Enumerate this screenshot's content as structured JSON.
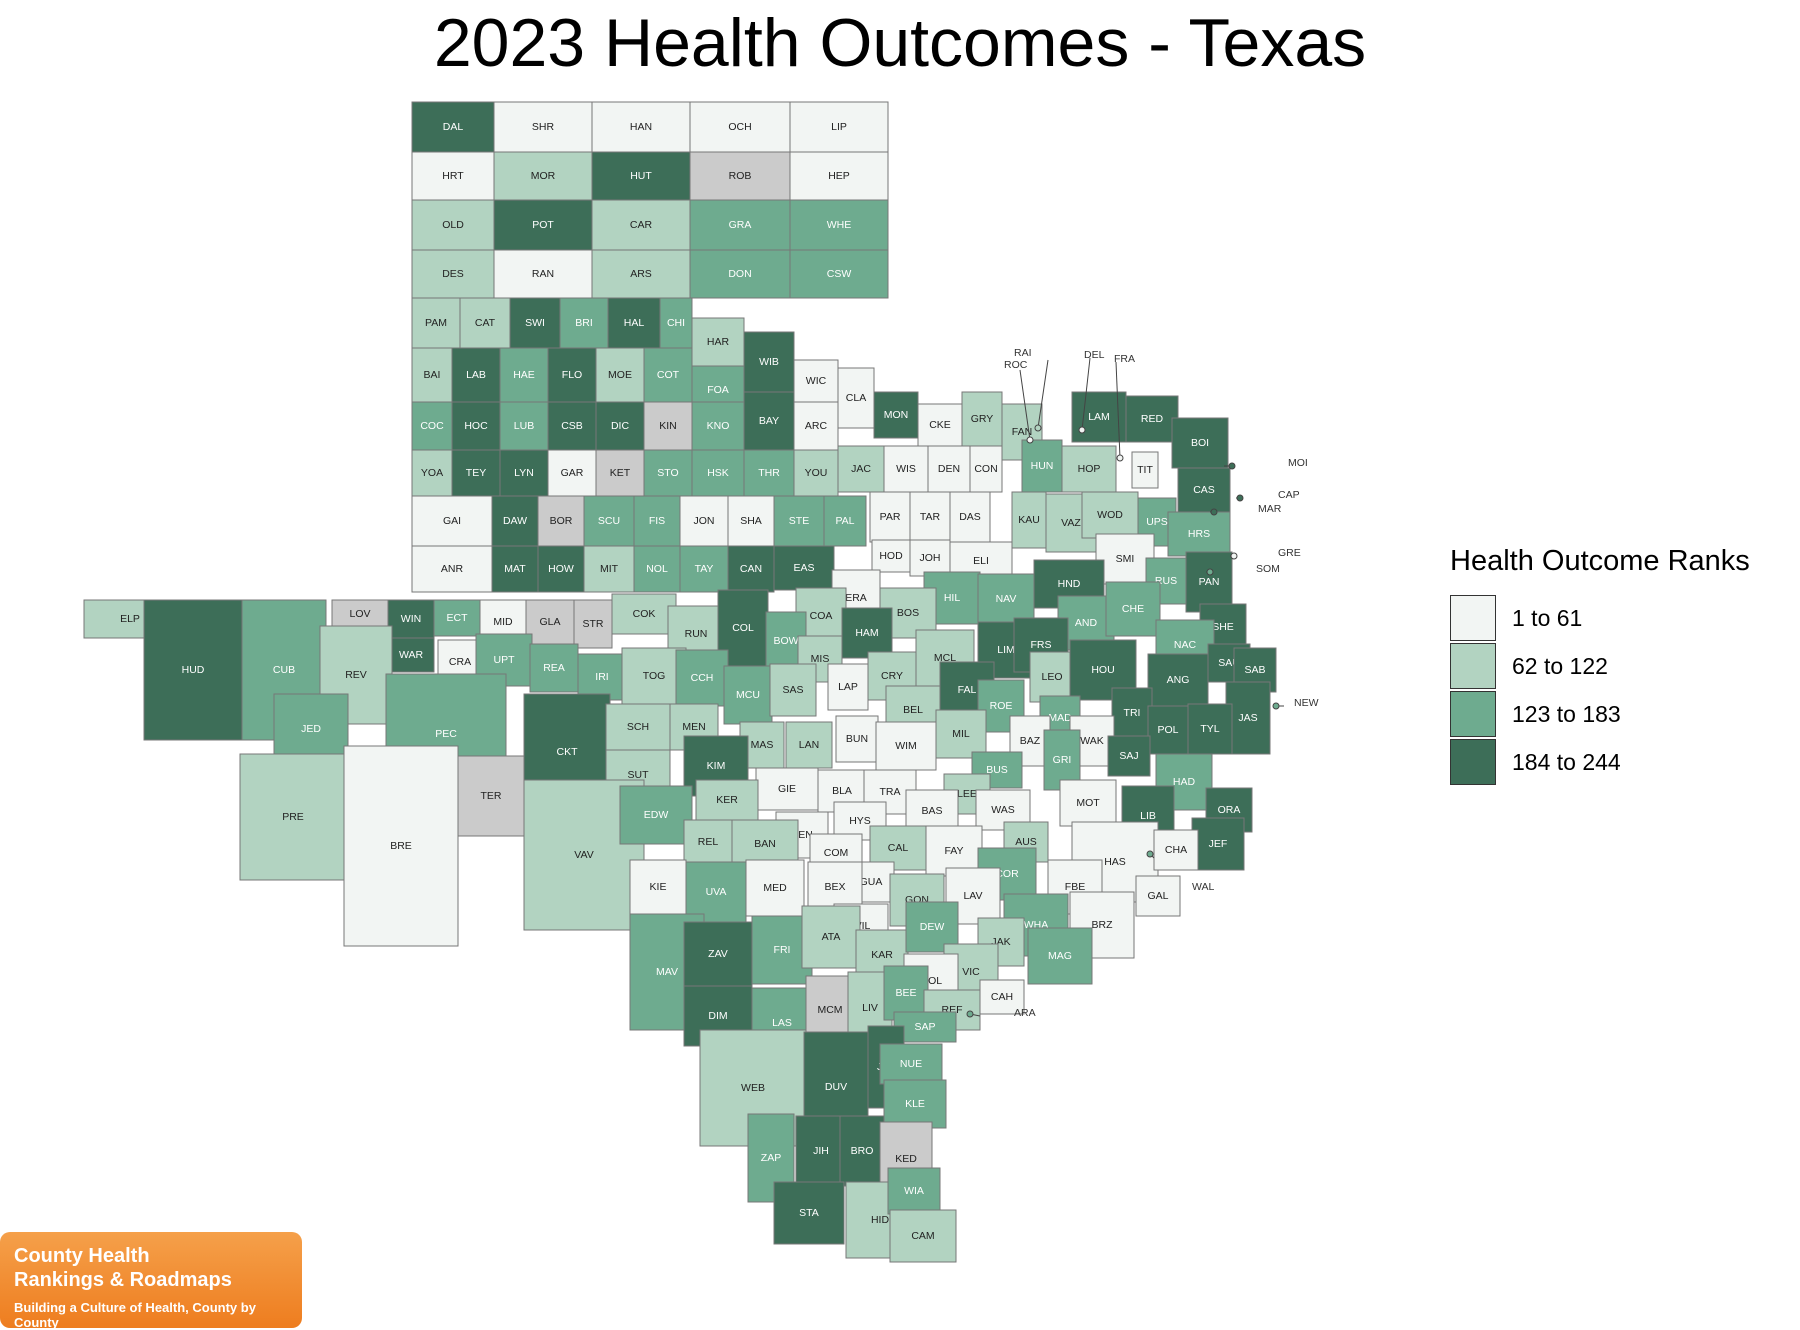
{
  "title": "2023 Health Outcomes - Texas",
  "legend": {
    "title": "Health Outcome Ranks",
    "items": [
      {
        "label": "1 to 61",
        "color": "#f2f5f3"
      },
      {
        "label": "62 to 122",
        "color": "#b2d3c1"
      },
      {
        "label": "123 to 183",
        "color": "#6eab8f"
      },
      {
        "label": "184 to 244",
        "color": "#3d6e58"
      }
    ],
    "no_data_color": "#cbcbcb"
  },
  "logo": {
    "line1": "County Health",
    "line2": "Rankings & Roadmaps",
    "tagline": "Building a Culture of Health, County by County"
  },
  "counties": [
    {
      "a": "DAL",
      "c": 4
    },
    {
      "a": "SHR",
      "c": 1
    },
    {
      "a": "HAN",
      "c": 1
    },
    {
      "a": "OCH",
      "c": 1
    },
    {
      "a": "LIP",
      "c": 1
    },
    {
      "a": "HRT",
      "c": 1
    },
    {
      "a": "MOR",
      "c": 2
    },
    {
      "a": "HUT",
      "c": 4
    },
    {
      "a": "ROB",
      "c": 0
    },
    {
      "a": "HEP",
      "c": 1
    },
    {
      "a": "OLD",
      "c": 2
    },
    {
      "a": "POT",
      "c": 4
    },
    {
      "a": "CAR",
      "c": 2
    },
    {
      "a": "GRA",
      "c": 3
    },
    {
      "a": "WHE",
      "c": 3
    },
    {
      "a": "DES",
      "c": 2
    },
    {
      "a": "RAN",
      "c": 1
    },
    {
      "a": "ARS",
      "c": 2
    },
    {
      "a": "DON",
      "c": 3
    },
    {
      "a": "CSW",
      "c": 3
    },
    {
      "a": "PAM",
      "c": 2
    },
    {
      "a": "CAT",
      "c": 2
    },
    {
      "a": "SWI",
      "c": 4
    },
    {
      "a": "BRI",
      "c": 3
    },
    {
      "a": "HAL",
      "c": 4
    },
    {
      "a": "CHI",
      "c": 3
    },
    {
      "a": "BAI",
      "c": 2
    },
    {
      "a": "LAB",
      "c": 4
    },
    {
      "a": "HAE",
      "c": 3
    },
    {
      "a": "FLO",
      "c": 4
    },
    {
      "a": "MOE",
      "c": 2
    },
    {
      "a": "COT",
      "c": 3
    },
    {
      "a": "COC",
      "c": 3
    },
    {
      "a": "HOC",
      "c": 4
    },
    {
      "a": "LUB",
      "c": 3
    },
    {
      "a": "CSB",
      "c": 4
    },
    {
      "a": "DIC",
      "c": 4
    },
    {
      "a": "KIN",
      "c": 0
    },
    {
      "a": "YOA",
      "c": 2
    },
    {
      "a": "TEY",
      "c": 4
    },
    {
      "a": "LYN",
      "c": 4
    },
    {
      "a": "GAR",
      "c": 1
    },
    {
      "a": "KET",
      "c": 0
    },
    {
      "a": "GAI",
      "c": 1
    },
    {
      "a": "DAW",
      "c": 4
    },
    {
      "a": "BOR",
      "c": 0
    },
    {
      "a": "SCU",
      "c": 3
    },
    {
      "a": "FIS",
      "c": 3
    },
    {
      "a": "JON",
      "c": 1
    },
    {
      "a": "SHA",
      "c": 1
    },
    {
      "a": "ANR",
      "c": 1
    },
    {
      "a": "MAT",
      "c": 4
    },
    {
      "a": "HOW",
      "c": 4
    },
    {
      "a": "MIT",
      "c": 2
    },
    {
      "a": "NOL",
      "c": 3
    },
    {
      "a": "TAY",
      "c": 3
    },
    {
      "a": "CAN",
      "c": 4
    },
    {
      "a": "HAR",
      "c": 2
    },
    {
      "a": "FOA",
      "c": 3
    },
    {
      "a": "WIB",
      "c": 4
    },
    {
      "a": "WIC",
      "c": 1
    },
    {
      "a": "KNO",
      "c": 3
    },
    {
      "a": "BAY",
      "c": 4
    },
    {
      "a": "ARC",
      "c": 1
    },
    {
      "a": "STO",
      "c": 3
    },
    {
      "a": "HSK",
      "c": 3
    },
    {
      "a": "THR",
      "c": 3
    },
    {
      "a": "YOU",
      "c": 2
    },
    {
      "a": "STE",
      "c": 3
    },
    {
      "a": "EAS",
      "c": 4
    },
    {
      "a": "PAL",
      "c": 3
    },
    {
      "a": "CLA",
      "c": 1
    },
    {
      "a": "MON",
      "c": 4
    },
    {
      "a": "CKE",
      "c": 1
    },
    {
      "a": "GRY",
      "c": 2
    },
    {
      "a": "FAN",
      "c": 2
    },
    {
      "a": "LAM",
      "c": 4
    },
    {
      "a": "RED",
      "c": 4
    },
    {
      "a": "BOI",
      "c": 4
    },
    {
      "a": "CAS",
      "c": 4
    },
    {
      "a": "JAC",
      "c": 2
    },
    {
      "a": "WIS",
      "c": 1
    },
    {
      "a": "DEN",
      "c": 1
    },
    {
      "a": "CON",
      "c": 1
    },
    {
      "a": "HUN",
      "c": 3
    },
    {
      "a": "HOP",
      "c": 2
    },
    {
      "a": "TIT",
      "c": 1
    },
    {
      "a": "PAR",
      "c": 1
    },
    {
      "a": "TAR",
      "c": 1
    },
    {
      "a": "DAS",
      "c": 1
    },
    {
      "a": "KAU",
      "c": 2
    },
    {
      "a": "VAZ",
      "c": 2
    },
    {
      "a": "WOD",
      "c": 2
    },
    {
      "a": "UPS",
      "c": 3
    },
    {
      "a": "HRS",
      "c": 3
    },
    {
      "a": "SMI",
      "c": 1
    },
    {
      "a": "HOD",
      "c": 1
    },
    {
      "a": "JOH",
      "c": 1
    },
    {
      "a": "ELI",
      "c": 1
    },
    {
      "a": "ERA",
      "c": 1
    },
    {
      "a": "HND",
      "c": 4
    },
    {
      "a": "RUS",
      "c": 3
    },
    {
      "a": "PAN",
      "c": 4
    },
    {
      "a": "ELP",
      "c": 2
    },
    {
      "a": "HUD",
      "c": 4
    },
    {
      "a": "CUB",
      "c": 3
    },
    {
      "a": "LOV",
      "c": 0
    },
    {
      "a": "WIN",
      "c": 4
    },
    {
      "a": "ECT",
      "c": 3
    },
    {
      "a": "MID",
      "c": 1
    },
    {
      "a": "GLA",
      "c": 0
    },
    {
      "a": "STR",
      "c": 0
    },
    {
      "a": "COK",
      "c": 2
    },
    {
      "a": "RUN",
      "c": 2
    },
    {
      "a": "COL",
      "c": 4
    },
    {
      "a": "COA",
      "c": 2
    },
    {
      "a": "BOW",
      "c": 3
    },
    {
      "a": "HIL",
      "c": 3
    },
    {
      "a": "NAV",
      "c": 3
    },
    {
      "a": "AND",
      "c": 3
    },
    {
      "a": "CHE",
      "c": 3
    },
    {
      "a": "SHE",
      "c": 4
    },
    {
      "a": "BOS",
      "c": 2
    },
    {
      "a": "HAM",
      "c": 4
    },
    {
      "a": "MCL",
      "c": 2
    },
    {
      "a": "LIM",
      "c": 4
    },
    {
      "a": "FRS",
      "c": 4
    },
    {
      "a": "NAC",
      "c": 3
    },
    {
      "a": "SAU",
      "c": 4
    },
    {
      "a": "SAB",
      "c": 4
    },
    {
      "a": "WAR",
      "c": 4
    },
    {
      "a": "CRA",
      "c": 1
    },
    {
      "a": "UPT",
      "c": 3
    },
    {
      "a": "REA",
      "c": 3
    },
    {
      "a": "IRI",
      "c": 3
    },
    {
      "a": "TOG",
      "c": 2
    },
    {
      "a": "CCH",
      "c": 3
    },
    {
      "a": "MIS",
      "c": 2
    },
    {
      "a": "CRY",
      "c": 2
    },
    {
      "a": "FAL",
      "c": 4
    },
    {
      "a": "LEO",
      "c": 2
    },
    {
      "a": "HOU",
      "c": 4
    },
    {
      "a": "ANG",
      "c": 4
    },
    {
      "a": "REV",
      "c": 2
    },
    {
      "a": "JED",
      "c": 3
    },
    {
      "a": "PEC",
      "c": 3
    },
    {
      "a": "MCU",
      "c": 3
    },
    {
      "a": "SAS",
      "c": 2
    },
    {
      "a": "LAP",
      "c": 1
    },
    {
      "a": "BEL",
      "c": 2
    },
    {
      "a": "ROE",
      "c": 3
    },
    {
      "a": "MAD",
      "c": 3
    },
    {
      "a": "TRI",
      "c": 4
    },
    {
      "a": "JAS",
      "c": 4
    },
    {
      "a": "CKT",
      "c": 4
    },
    {
      "a": "SCH",
      "c": 2
    },
    {
      "a": "MEN",
      "c": 2
    },
    {
      "a": "MAS",
      "c": 2
    },
    {
      "a": "LAN",
      "c": 2
    },
    {
      "a": "BUN",
      "c": 1
    },
    {
      "a": "WIM",
      "c": 1
    },
    {
      "a": "MIL",
      "c": 2
    },
    {
      "a": "BAZ",
      "c": 1
    },
    {
      "a": "WAK",
      "c": 1
    },
    {
      "a": "POL",
      "c": 4
    },
    {
      "a": "TYL",
      "c": 4
    },
    {
      "a": "SAJ",
      "c": 4
    },
    {
      "a": "GRI",
      "c": 3
    },
    {
      "a": "SUT",
      "c": 2
    },
    {
      "a": "KIM",
      "c": 4
    },
    {
      "a": "BUS",
      "c": 3
    },
    {
      "a": "TER",
      "c": 0
    },
    {
      "a": "GIE",
      "c": 1
    },
    {
      "a": "BLA",
      "c": 1
    },
    {
      "a": "TRA",
      "c": 1
    },
    {
      "a": "LEE",
      "c": 2
    },
    {
      "a": "MOT",
      "c": 1
    },
    {
      "a": "HAD",
      "c": 3
    },
    {
      "a": "LIB",
      "c": 4
    },
    {
      "a": "PRE",
      "c": 2
    },
    {
      "a": "VAV",
      "c": 2
    },
    {
      "a": "EDW",
      "c": 3
    },
    {
      "a": "KER",
      "c": 2
    },
    {
      "a": "KEN",
      "c": 1
    },
    {
      "a": "HYS",
      "c": 1
    },
    {
      "a": "BAS",
      "c": 1
    },
    {
      "a": "WAS",
      "c": 1
    },
    {
      "a": "ORA",
      "c": 4
    },
    {
      "a": "BRE",
      "c": 1
    },
    {
      "a": "REL",
      "c": 2
    },
    {
      "a": "BAN",
      "c": 2
    },
    {
      "a": "COM",
      "c": 1
    },
    {
      "a": "CAL",
      "c": 2
    },
    {
      "a": "FAY",
      "c": 1
    },
    {
      "a": "AUS",
      "c": 2
    },
    {
      "a": "HAS",
      "c": 1
    },
    {
      "a": "JEF",
      "c": 4
    },
    {
      "a": "CHA",
      "c": 1
    },
    {
      "a": "GUA",
      "c": 1
    },
    {
      "a": "COR",
      "c": 3
    },
    {
      "a": "KIE",
      "c": 1
    },
    {
      "a": "UVA",
      "c": 3
    },
    {
      "a": "MED",
      "c": 1
    },
    {
      "a": "BEX",
      "c": 1
    },
    {
      "a": "GON",
      "c": 2
    },
    {
      "a": "LAV",
      "c": 1
    },
    {
      "a": "FBE",
      "c": 1
    },
    {
      "a": "WIL",
      "c": 1
    },
    {
      "a": "WHA",
      "c": 3
    },
    {
      "a": "BRZ",
      "c": 1
    },
    {
      "a": "GAL",
      "c": 1
    },
    {
      "a": "MAV",
      "c": 3
    },
    {
      "a": "ZAV",
      "c": 4
    },
    {
      "a": "FRI",
      "c": 3
    },
    {
      "a": "ATA",
      "c": 2
    },
    {
      "a": "KAR",
      "c": 2
    },
    {
      "a": "DEW",
      "c": 3
    },
    {
      "a": "JAK",
      "c": 2
    },
    {
      "a": "MAG",
      "c": 3
    },
    {
      "a": "VIC",
      "c": 2
    },
    {
      "a": "GOL",
      "c": 1
    },
    {
      "a": "CAH",
      "c": 1
    },
    {
      "a": "DIM",
      "c": 4
    },
    {
      "a": "LAS",
      "c": 3
    },
    {
      "a": "MCM",
      "c": 0
    },
    {
      "a": "LIV",
      "c": 2
    },
    {
      "a": "BEE",
      "c": 3
    },
    {
      "a": "REF",
      "c": 2
    },
    {
      "a": "SAP",
      "c": 3
    },
    {
      "a": "WEB",
      "c": 2
    },
    {
      "a": "DUV",
      "c": 4
    },
    {
      "a": "JIW",
      "c": 4
    },
    {
      "a": "NUE",
      "c": 3
    },
    {
      "a": "KLE",
      "c": 3
    },
    {
      "a": "ZAP",
      "c": 3
    },
    {
      "a": "JIH",
      "c": 4
    },
    {
      "a": "BRO",
      "c": 4
    },
    {
      "a": "KED",
      "c": 0
    },
    {
      "a": "STA",
      "c": 4
    },
    {
      "a": "HID",
      "c": 2
    },
    {
      "a": "WIA",
      "c": 3
    },
    {
      "a": "CAM",
      "c": 2
    },
    {
      "a": "ARA",
      "c": 3
    },
    {
      "a": "NEW",
      "c": 3
    },
    {
      "a": "RAI",
      "c": 2
    },
    {
      "a": "ROC",
      "c": 1
    },
    {
      "a": "DEL",
      "c": 1
    },
    {
      "a": "FRA",
      "c": 1
    },
    {
      "a": "MOI",
      "c": 4
    },
    {
      "a": "CAP",
      "c": 4
    },
    {
      "a": "MAR",
      "c": 4
    },
    {
      "a": "GRE",
      "c": 1
    },
    {
      "a": "SOM",
      "c": 3
    },
    {
      "a": "WAL",
      "c": 3
    }
  ]
}
